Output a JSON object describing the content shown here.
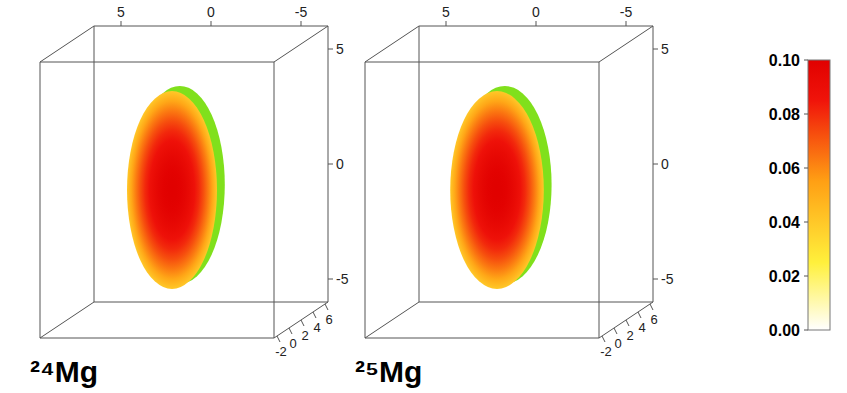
{
  "chart_data": {
    "type": "density3d",
    "panels": [
      {
        "title": "²⁴Mg",
        "semi_axes": {
          "x": 2.5,
          "z": 4.3
        },
        "center_value": 0.1,
        "edge_value": 0.04
      },
      {
        "title": "²⁵Mg",
        "semi_axes": {
          "x": 2.6,
          "z": 4.3
        },
        "center_value": 0.1,
        "edge_value": 0.04
      }
    ],
    "xlim": [
      6.5,
      -6.5
    ],
    "xticks": [
      5,
      0,
      -5
    ],
    "ylim": [
      -2.5,
      6.5
    ],
    "yticks": [
      -2,
      0,
      2,
      4,
      6
    ],
    "zlim": [
      -6,
      6
    ],
    "zticks": [
      5,
      0,
      -5
    ],
    "colorbar": {
      "range": [
        0,
        0.1
      ],
      "ticks": [
        {
          "value": 0,
          "label": "0.00"
        },
        {
          "value": 0.02,
          "label": "0.02"
        },
        {
          "value": 0.04,
          "label": "0.04"
        },
        {
          "value": 0.06,
          "label": "0.06"
        },
        {
          "value": 0.08,
          "label": "0.08"
        },
        {
          "value": 0.1,
          "label": "0.10"
        }
      ]
    }
  }
}
